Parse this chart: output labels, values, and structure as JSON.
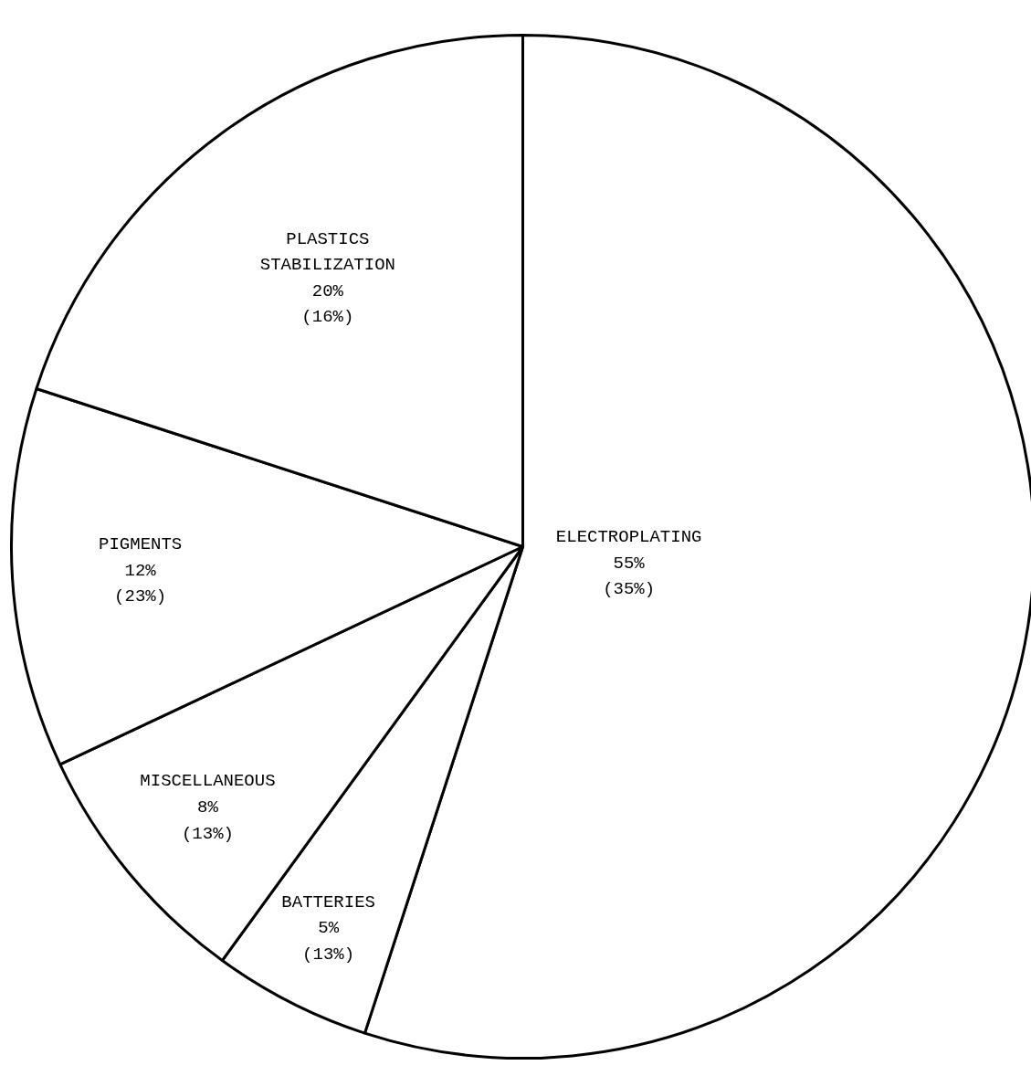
{
  "chart_data": {
    "type": "pie",
    "categories": [
      "ELECTROPLATING",
      "BATTERIES",
      "MISCELLANEOUS",
      "PIGMENTS",
      "PLASTICS\nSTABILIZATION"
    ],
    "values": [
      55,
      5,
      8,
      12,
      20
    ],
    "colors": [
      "#ffffff",
      "#ffffff",
      "#ffffff",
      "#ffffff",
      "#ffffff"
    ],
    "value_labels": [
      "55%\n(35%)",
      "5%\n(13%)",
      "8%\n(13%)",
      "12%\n(23%)",
      "20%\n(16%)"
    ]
  }
}
